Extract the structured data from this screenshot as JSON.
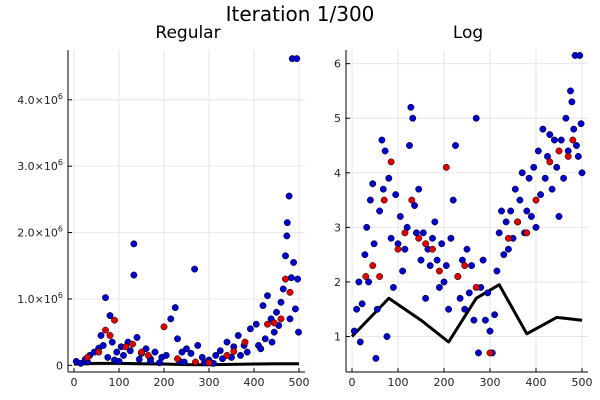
{
  "figure": {
    "title": "Iteration 1/300"
  },
  "chart_data": [
    {
      "type": "scatter",
      "title": "Regular",
      "xlabel": "",
      "ylabel": "",
      "xlim": [
        0,
        500
      ],
      "ylim": [
        -100000,
        4750000
      ],
      "xticks": [
        0,
        100,
        200,
        300,
        400,
        500
      ],
      "yticks": [
        {
          "value": 0,
          "label": "0",
          "mantissa": "",
          "exponent": ""
        },
        {
          "value": 1000000,
          "label": "",
          "mantissa": "1.0×10",
          "exponent": "6"
        },
        {
          "value": 2000000,
          "label": "",
          "mantissa": "2.0×10",
          "exponent": "6"
        },
        {
          "value": 3000000,
          "label": "",
          "mantissa": "3.0×10",
          "exponent": "6"
        },
        {
          "value": 4000000,
          "label": "",
          "mantissa": "4.0×10",
          "exponent": "6"
        }
      ],
      "grid": true,
      "legend": "none",
      "series_blue": [
        [
          5,
          60000
        ],
        [
          15,
          30000
        ],
        [
          25,
          90000
        ],
        [
          35,
          150000
        ],
        [
          45,
          200000
        ],
        [
          55,
          260000
        ],
        [
          60,
          450000
        ],
        [
          65,
          300000
        ],
        [
          70,
          1020000
        ],
        [
          80,
          750000
        ],
        [
          85,
          350000
        ],
        [
          95,
          200000
        ],
        [
          105,
          280000
        ],
        [
          110,
          150000
        ],
        [
          120,
          350000
        ],
        [
          125,
          220000
        ],
        [
          133,
          1830000
        ],
        [
          133,
          1360000
        ],
        [
          140,
          420000
        ],
        [
          150,
          180000
        ],
        [
          160,
          250000
        ],
        [
          170,
          100000
        ],
        [
          180,
          200000
        ],
        [
          195,
          120000
        ],
        [
          205,
          150000
        ],
        [
          215,
          700000
        ],
        [
          225,
          870000
        ],
        [
          230,
          400000
        ],
        [
          240,
          200000
        ],
        [
          250,
          250000
        ],
        [
          260,
          180000
        ],
        [
          268,
          1450000
        ],
        [
          275,
          300000
        ],
        [
          285,
          120000
        ],
        [
          300,
          80000
        ],
        [
          315,
          150000
        ],
        [
          325,
          220000
        ],
        [
          340,
          350000
        ],
        [
          355,
          280000
        ],
        [
          365,
          450000
        ],
        [
          378,
          300000
        ],
        [
          392,
          550000
        ],
        [
          405,
          620000
        ],
        [
          410,
          300000
        ],
        [
          420,
          900000
        ],
        [
          430,
          1050000
        ],
        [
          438,
          700000
        ],
        [
          445,
          500000
        ],
        [
          450,
          800000
        ],
        [
          460,
          950000
        ],
        [
          465,
          1150000
        ],
        [
          470,
          1650000
        ],
        [
          473,
          1950000
        ],
        [
          474,
          2150000
        ],
        [
          478,
          2550000
        ],
        [
          480,
          700000
        ],
        [
          483,
          1320000
        ],
        [
          485,
          4620000
        ],
        [
          488,
          1550000
        ],
        [
          492,
          850000
        ],
        [
          495,
          4620000
        ],
        [
          497,
          1300000
        ],
        [
          499,
          500000
        ],
        [
          30,
          50000
        ],
        [
          75,
          120000
        ],
        [
          100,
          60000
        ],
        [
          145,
          90000
        ],
        [
          190,
          40000
        ],
        [
          235,
          60000
        ],
        [
          290,
          40000
        ],
        [
          330,
          100000
        ],
        [
          370,
          150000
        ],
        [
          415,
          250000
        ],
        [
          440,
          350000
        ],
        [
          455,
          600000
        ],
        [
          90,
          80000
        ],
        [
          170,
          60000
        ],
        [
          245,
          50000
        ],
        [
          310,
          30000
        ],
        [
          350,
          120000
        ],
        [
          385,
          200000
        ],
        [
          425,
          400000
        ]
      ],
      "series_red": [
        [
          30,
          120000
        ],
        [
          55,
          200000
        ],
        [
          70,
          530000
        ],
        [
          80,
          450000
        ],
        [
          90,
          680000
        ],
        [
          115,
          280000
        ],
        [
          130,
          320000
        ],
        [
          150,
          200000
        ],
        [
          165,
          150000
        ],
        [
          200,
          580000
        ],
        [
          230,
          100000
        ],
        [
          270,
          50000
        ],
        [
          300,
          40000
        ],
        [
          340,
          150000
        ],
        [
          355,
          210000
        ],
        [
          380,
          350000
        ],
        [
          430,
          620000
        ],
        [
          445,
          640000
        ],
        [
          460,
          700000
        ],
        [
          470,
          1300000
        ],
        [
          480,
          1100000
        ]
      ],
      "line_black": [
        [
          0,
          20000
        ],
        [
          50,
          30000
        ],
        [
          100,
          30000
        ],
        [
          150,
          25000
        ],
        [
          200,
          20000
        ],
        [
          250,
          12000
        ],
        [
          300,
          10000
        ],
        [
          350,
          15000
        ],
        [
          400,
          20000
        ],
        [
          450,
          25000
        ],
        [
          500,
          25000
        ]
      ]
    },
    {
      "type": "scatter",
      "title": "Log",
      "xlabel": "",
      "ylabel": "",
      "xlim": [
        0,
        500
      ],
      "ylim": [
        0.35,
        6.25
      ],
      "xticks": [
        0,
        100,
        200,
        300,
        400,
        500
      ],
      "yticks": [
        {
          "value": 1,
          "label": "1"
        },
        {
          "value": 2,
          "label": "2"
        },
        {
          "value": 3,
          "label": "3"
        },
        {
          "value": 4,
          "label": "4"
        },
        {
          "value": 5,
          "label": "5"
        },
        {
          "value": 6,
          "label": "6"
        }
      ],
      "grid": true,
      "legend": "none",
      "series_blue": [
        [
          5,
          1.1
        ],
        [
          10,
          1.5
        ],
        [
          15,
          2.0
        ],
        [
          18,
          0.9
        ],
        [
          22,
          1.6
        ],
        [
          28,
          2.5
        ],
        [
          32,
          3.0
        ],
        [
          36,
          2.0
        ],
        [
          40,
          3.5
        ],
        [
          45,
          3.8
        ],
        [
          48,
          2.7
        ],
        [
          52,
          0.6
        ],
        [
          55,
          1.5
        ],
        [
          60,
          3.3
        ],
        [
          65,
          4.6
        ],
        [
          68,
          3.7
        ],
        [
          72,
          4.4
        ],
        [
          76,
          1.0
        ],
        [
          80,
          3.9
        ],
        [
          85,
          2.8
        ],
        [
          90,
          1.9
        ],
        [
          95,
          3.6
        ],
        [
          100,
          2.7
        ],
        [
          105,
          3.2
        ],
        [
          110,
          2.2
        ],
        [
          115,
          2.6
        ],
        [
          120,
          3.0
        ],
        [
          125,
          4.5
        ],
        [
          128,
          5.2
        ],
        [
          132,
          5.0
        ],
        [
          136,
          3.4
        ],
        [
          140,
          2.9
        ],
        [
          145,
          3.7
        ],
        [
          150,
          2.4
        ],
        [
          155,
          2.9
        ],
        [
          160,
          1.7
        ],
        [
          165,
          2.6
        ],
        [
          170,
          2.3
        ],
        [
          175,
          2.8
        ],
        [
          180,
          3.1
        ],
        [
          185,
          2.4
        ],
        [
          190,
          1.9
        ],
        [
          195,
          2.7
        ],
        [
          200,
          2.0
        ],
        [
          205,
          2.3
        ],
        [
          210,
          1.5
        ],
        [
          215,
          2.8
        ],
        [
          220,
          3.5
        ],
        [
          225,
          4.5
        ],
        [
          230,
          2.1
        ],
        [
          235,
          1.7
        ],
        [
          240,
          2.4
        ],
        [
          245,
          1.5
        ],
        [
          250,
          2.6
        ],
        [
          255,
          1.8
        ],
        [
          260,
          2.3
        ],
        [
          265,
          1.3
        ],
        [
          270,
          5.0
        ],
        [
          275,
          0.7
        ],
        [
          280,
          1.9
        ],
        [
          285,
          2.4
        ],
        [
          290,
          1.3
        ],
        [
          295,
          1.8
        ],
        [
          300,
          1.1
        ],
        [
          305,
          0.7
        ],
        [
          310,
          1.4
        ],
        [
          315,
          2.2
        ],
        [
          320,
          2.9
        ],
        [
          325,
          3.3
        ],
        [
          330,
          2.5
        ],
        [
          335,
          3.1
        ],
        [
          340,
          2.6
        ],
        [
          345,
          3.3
        ],
        [
          350,
          2.8
        ],
        [
          355,
          3.7
        ],
        [
          360,
          3.1
        ],
        [
          365,
          3.5
        ],
        [
          370,
          4.0
        ],
        [
          375,
          2.9
        ],
        [
          380,
          3.3
        ],
        [
          385,
          3.9
        ],
        [
          390,
          3.2
        ],
        [
          395,
          4.1
        ],
        [
          400,
          3.0
        ],
        [
          405,
          4.4
        ],
        [
          410,
          3.6
        ],
        [
          415,
          4.8
        ],
        [
          420,
          3.9
        ],
        [
          425,
          4.3
        ],
        [
          430,
          4.7
        ],
        [
          435,
          3.7
        ],
        [
          440,
          4.6
        ],
        [
          445,
          4.1
        ],
        [
          450,
          3.2
        ],
        [
          455,
          4.6
        ],
        [
          460,
          3.9
        ],
        [
          465,
          5.0
        ],
        [
          470,
          4.4
        ],
        [
          475,
          5.5
        ],
        [
          478,
          5.3
        ],
        [
          482,
          4.8
        ],
        [
          485,
          6.15
        ],
        [
          488,
          4.5
        ],
        [
          492,
          4.3
        ],
        [
          495,
          6.15
        ],
        [
          498,
          4.9
        ],
        [
          500,
          4.0
        ]
      ],
      "series_red": [
        [
          30,
          2.1
        ],
        [
          45,
          2.3
        ],
        [
          60,
          2.1
        ],
        [
          70,
          3.5
        ],
        [
          85,
          4.2
        ],
        [
          100,
          2.6
        ],
        [
          115,
          2.9
        ],
        [
          130,
          3.5
        ],
        [
          145,
          2.8
        ],
        [
          160,
          2.7
        ],
        [
          175,
          2.6
        ],
        [
          190,
          2.2
        ],
        [
          205,
          4.1
        ],
        [
          230,
          2.1
        ],
        [
          245,
          2.3
        ],
        [
          270,
          1.9
        ],
        [
          300,
          0.7
        ],
        [
          340,
          2.8
        ],
        [
          360,
          3.1
        ],
        [
          380,
          2.9
        ],
        [
          400,
          3.5
        ],
        [
          430,
          4.2
        ],
        [
          450,
          4.4
        ],
        [
          470,
          4.3
        ],
        [
          480,
          4.6
        ]
      ],
      "line_black": [
        [
          0,
          1.0
        ],
        [
          80,
          1.7
        ],
        [
          150,
          1.3
        ],
        [
          210,
          0.9
        ],
        [
          270,
          1.7
        ],
        [
          320,
          1.95
        ],
        [
          380,
          1.05
        ],
        [
          445,
          1.35
        ],
        [
          500,
          1.3
        ]
      ]
    }
  ],
  "colors": {
    "blue": "#0000cc",
    "red": "#dd0000",
    "line": "#000000",
    "grid": "#e6e6e6",
    "axis": "#000000"
  }
}
